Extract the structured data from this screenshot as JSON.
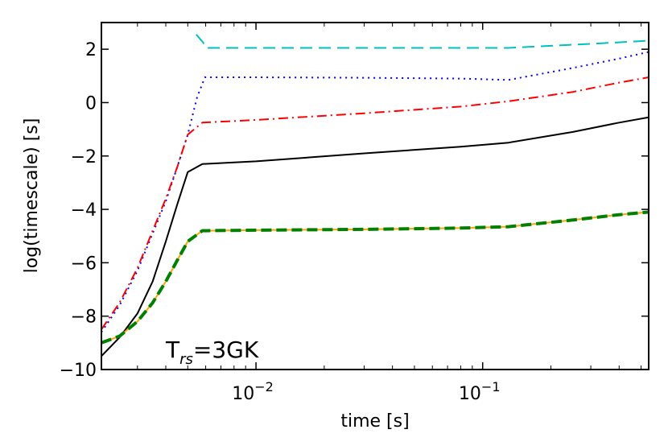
{
  "chart_data": {
    "type": "line",
    "title": "",
    "xlabel": "time  [s]",
    "ylabel": "log(timescale)  [s]",
    "xscale": "log",
    "xlim": [
      0.00208,
      0.54
    ],
    "ylim": [
      -10,
      3
    ],
    "grid": false,
    "x_ticks": [
      {
        "value": 0.01,
        "base": "10",
        "exp": "-2"
      },
      {
        "value": 0.1,
        "base": "10",
        "exp": "-1"
      }
    ],
    "y_ticks": [
      -10,
      -8,
      -6,
      -4,
      -2,
      0,
      2
    ],
    "annotation": {
      "prefix": "T",
      "subscript": "rs",
      "suffix": "=3GK"
    },
    "series": [
      {
        "name": "cyan-dashed",
        "color": "#00bfbf",
        "dash": "15,8",
        "width": 2,
        "x": [
          0.00545,
          0.00585,
          0.006,
          0.009,
          0.02,
          0.05,
          0.13,
          0.3,
          0.54
        ],
        "y": [
          2.55,
          2.25,
          2.05,
          2.05,
          2.05,
          2.05,
          2.05,
          2.2,
          2.32
        ]
      },
      {
        "name": "blue-dotted",
        "color": "#0000ff",
        "dash": "2,5",
        "width": 2,
        "x": [
          0.00208,
          0.0025,
          0.003,
          0.0035,
          0.004,
          0.0045,
          0.005,
          0.0055,
          0.00595,
          0.01,
          0.03,
          0.08,
          0.13,
          0.25,
          0.4,
          0.54
        ],
        "y": [
          -8.6,
          -7.6,
          -6.3,
          -4.9,
          -3.7,
          -2.4,
          -1.2,
          0.2,
          0.95,
          0.95,
          0.93,
          0.9,
          0.85,
          1.3,
          1.65,
          1.9
        ]
      },
      {
        "name": "red-dashdot",
        "color": "#ff0000",
        "dash": "12,5,2,5",
        "width": 2,
        "x": [
          0.00208,
          0.0025,
          0.003,
          0.0035,
          0.004,
          0.0045,
          0.005,
          0.0058,
          0.01,
          0.03,
          0.08,
          0.13,
          0.25,
          0.4,
          0.54
        ],
        "y": [
          -8.5,
          -7.5,
          -6.2,
          -4.8,
          -3.6,
          -2.4,
          -1.2,
          -0.75,
          -0.65,
          -0.4,
          -0.15,
          0.05,
          0.4,
          0.75,
          0.95
        ]
      },
      {
        "name": "black-solid",
        "color": "#000000",
        "dash": "",
        "width": 2,
        "x": [
          0.00208,
          0.0025,
          0.003,
          0.0035,
          0.004,
          0.0045,
          0.005,
          0.0058,
          0.01,
          0.03,
          0.08,
          0.13,
          0.25,
          0.4,
          0.54
        ],
        "y": [
          -9.5,
          -8.8,
          -7.9,
          -6.7,
          -5.2,
          -3.8,
          -2.6,
          -2.3,
          -2.2,
          -1.9,
          -1.65,
          -1.5,
          -1.1,
          -0.75,
          -0.55
        ]
      },
      {
        "name": "orange-solid",
        "color": "#ffa500",
        "dash": "",
        "width": 2,
        "x": [
          0.00208,
          0.0025,
          0.003,
          0.0035,
          0.004,
          0.0045,
          0.005,
          0.0058,
          0.01,
          0.03,
          0.08,
          0.13,
          0.25,
          0.4,
          0.54
        ],
        "y": [
          -9.0,
          -8.75,
          -8.2,
          -7.5,
          -6.7,
          -5.9,
          -5.2,
          -4.8,
          -4.78,
          -4.75,
          -4.7,
          -4.65,
          -4.4,
          -4.2,
          -4.1
        ]
      },
      {
        "name": "green-dashed",
        "color": "#008000",
        "dash": "13,6",
        "width": 4,
        "x": [
          0.00208,
          0.0025,
          0.003,
          0.0035,
          0.004,
          0.0045,
          0.005,
          0.0058,
          0.01,
          0.03,
          0.08,
          0.13,
          0.25,
          0.4,
          0.54
        ],
        "y": [
          -9.0,
          -8.75,
          -8.2,
          -7.5,
          -6.7,
          -5.9,
          -5.2,
          -4.8,
          -4.78,
          -4.75,
          -4.7,
          -4.65,
          -4.4,
          -4.2,
          -4.1
        ]
      }
    ]
  }
}
